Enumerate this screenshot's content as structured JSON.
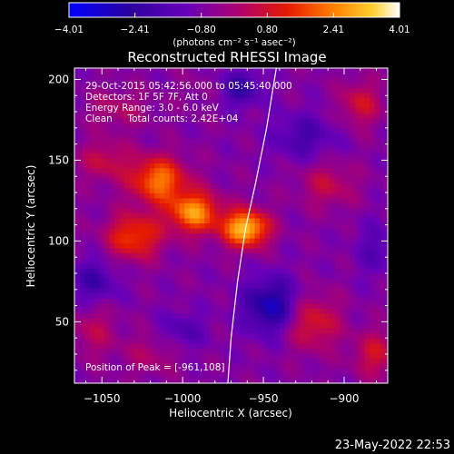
{
  "chart_data": {
    "type": "heatmap",
    "title": "Reconstructed RHESSI Image",
    "xlabel": "Heliocentric X (arcsec)",
    "ylabel": "Heliocentric Y (arcsec)",
    "xlim": [
      -1067,
      -873
    ],
    "ylim": [
      12,
      207
    ],
    "x_ticks": [
      -1050,
      -1000,
      -950,
      -900
    ],
    "x_tick_labels": [
      "−1050",
      "−1000",
      "−950",
      "−900"
    ],
    "y_ticks": [
      50,
      100,
      150,
      200
    ],
    "y_tick_labels": [
      "50",
      "100",
      "150",
      "200"
    ],
    "colorbar": {
      "min": -4.01,
      "max": 4.01,
      "ticks": [
        -4.01,
        -2.41,
        -0.8,
        0.8,
        2.41,
        4.01
      ],
      "tick_labels": [
        "−4.01",
        "−2.41",
        "−0.80",
        "0.80",
        "2.41",
        "4.01"
      ],
      "unit_label": "(photons cm⁻² s⁻¹ asec⁻²)",
      "colors": [
        "#0000ff",
        "#2a00a0",
        "#6a00b8",
        "#b0006a",
        "#e61a00",
        "#ff8000",
        "#ffd030",
        "#ffffff"
      ]
    },
    "annotations": [
      "29-Oct-2015 05:42:56.000 to 05:45:40.000",
      "Detectors: 1F 5F 7F, Att 0",
      "Energy Range: 3.0 - 6.0 keV",
      "Clean     Total counts: 2.42E+04"
    ],
    "peak_label": "Position of Peak = [-961,108]",
    "peak": [
      -961,
      108
    ],
    "limb_curve": [
      [
        -942,
        207
      ],
      [
        -948,
        170
      ],
      [
        -955,
        135
      ],
      [
        -961,
        108
      ],
      [
        -966,
        75
      ],
      [
        -970,
        40
      ],
      [
        -972,
        12
      ]
    ],
    "sources": [
      {
        "x": -961,
        "y": 108,
        "value": 4.0,
        "sx": 10,
        "sy": 8
      },
      {
        "x": -993,
        "y": 118,
        "value": 3.3,
        "sx": 11,
        "sy": 9
      },
      {
        "x": -1015,
        "y": 138,
        "value": 3.0,
        "sx": 12,
        "sy": 10
      },
      {
        "x": -1030,
        "y": 103,
        "value": 2.4,
        "sx": 12,
        "sy": 10
      },
      {
        "x": -1048,
        "y": 150,
        "value": 1.3,
        "sx": 11,
        "sy": 9
      },
      {
        "x": -1040,
        "y": 182,
        "value": 0.9,
        "sx": 13,
        "sy": 8
      },
      {
        "x": -920,
        "y": 50,
        "value": 1.8,
        "sx": 12,
        "sy": 12
      },
      {
        "x": -880,
        "y": 30,
        "value": 1.5,
        "sx": 10,
        "sy": 10
      },
      {
        "x": -910,
        "y": 135,
        "value": 1.2,
        "sx": 12,
        "sy": 10
      },
      {
        "x": -890,
        "y": 185,
        "value": 1.5,
        "sx": 9,
        "sy": 10
      },
      {
        "x": -1055,
        "y": 45,
        "value": 1.0,
        "sx": 10,
        "sy": 12
      },
      {
        "x": -1020,
        "y": 30,
        "value": 0.8,
        "sx": 12,
        "sy": 9
      },
      {
        "x": -980,
        "y": 195,
        "value": 0.4,
        "sx": 14,
        "sy": 8
      }
    ],
    "negative_regions": [
      {
        "x": -945,
        "y": 60,
        "value": -2.4,
        "sx": 12,
        "sy": 12
      },
      {
        "x": -965,
        "y": 195,
        "value": -1.8,
        "sx": 10,
        "sy": 8
      },
      {
        "x": -1055,
        "y": 75,
        "value": -1.4,
        "sx": 10,
        "sy": 10
      },
      {
        "x": -925,
        "y": 165,
        "value": -1.2,
        "sx": 14,
        "sy": 10
      },
      {
        "x": -1000,
        "y": 45,
        "value": -1.0,
        "sx": 10,
        "sy": 8
      },
      {
        "x": -880,
        "y": 95,
        "value": -0.9,
        "sx": 9,
        "sy": 12
      }
    ],
    "base_level": -0.7
  },
  "footer": {
    "date": "23-May-2022 22:53"
  }
}
